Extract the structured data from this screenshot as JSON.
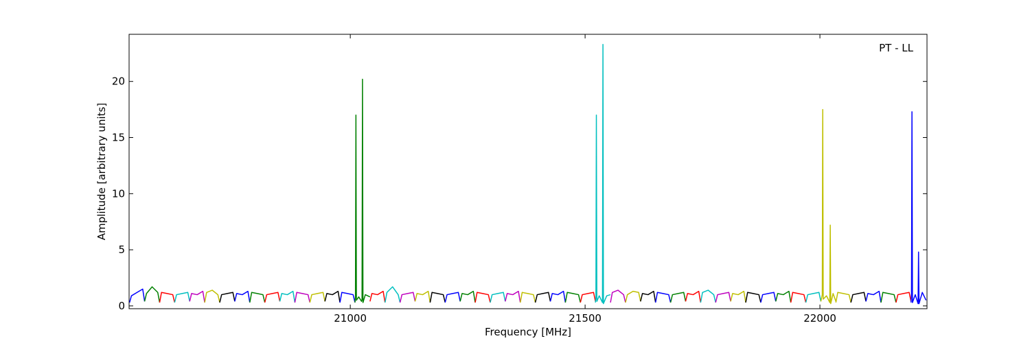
{
  "chart_data": {
    "type": "line",
    "annotation": "PT - LL",
    "xlabel": "Frequency [MHz]",
    "ylabel": "Amplitude [arbitrary units]",
    "xlim": [
      20529,
      22228
    ],
    "ylim": [
      -0.25,
      24.2
    ],
    "xticks": [
      21000,
      21500,
      22000
    ],
    "yticks": [
      0,
      5,
      10,
      15,
      20
    ],
    "series": [
      {
        "color": "#0000ff",
        "x": [
          20530,
          20534,
          20546,
          20558,
          20562
        ],
        "values": [
          0.3,
          0.9,
          1.2,
          1.5,
          0.4
        ]
      },
      {
        "color": "#008000",
        "x": [
          20562,
          20566,
          20578,
          20590,
          20594
        ],
        "values": [
          0.4,
          1.1,
          1.7,
          1.2,
          0.3
        ]
      },
      {
        "color": "#ff0000",
        "x": [
          20594,
          20598,
          20610,
          20622,
          20626
        ],
        "values": [
          0.3,
          1.2,
          1.1,
          1.0,
          0.3
        ]
      },
      {
        "color": "#00bfbf",
        "x": [
          20626,
          20630,
          20642,
          20654,
          20658
        ],
        "values": [
          0.3,
          1.0,
          1.1,
          1.2,
          0.4
        ]
      },
      {
        "color": "#bf00bf",
        "x": [
          20658,
          20662,
          20674,
          20686,
          20690
        ],
        "values": [
          0.4,
          1.1,
          1.0,
          1.3,
          0.3
        ]
      },
      {
        "color": "#bfbf00",
        "x": [
          20690,
          20694,
          20706,
          20718,
          20722
        ],
        "values": [
          0.3,
          1.2,
          1.4,
          1.0,
          0.3
        ]
      },
      {
        "color": "#000000",
        "x": [
          20722,
          20726,
          20738,
          20750,
          20754
        ],
        "values": [
          0.3,
          1.0,
          1.1,
          1.2,
          0.4
        ]
      },
      {
        "color": "#0000ff",
        "x": [
          20754,
          20758,
          20770,
          20782,
          20786
        ],
        "values": [
          0.4,
          1.1,
          1.0,
          1.3,
          0.3
        ]
      },
      {
        "color": "#008000",
        "x": [
          20786,
          20790,
          20802,
          20814,
          20818
        ],
        "values": [
          0.3,
          1.2,
          1.1,
          1.0,
          0.3
        ]
      },
      {
        "color": "#ff0000",
        "x": [
          20818,
          20822,
          20834,
          20846,
          20850
        ],
        "values": [
          0.3,
          1.0,
          1.1,
          1.2,
          0.4
        ]
      },
      {
        "color": "#00bfbf",
        "x": [
          20850,
          20854,
          20866,
          20878,
          20882
        ],
        "values": [
          0.4,
          1.1,
          1.0,
          1.3,
          0.3
        ]
      },
      {
        "color": "#bf00bf",
        "x": [
          20882,
          20886,
          20898,
          20910,
          20914
        ],
        "values": [
          0.3,
          1.2,
          1.1,
          1.0,
          0.3
        ]
      },
      {
        "color": "#bfbf00",
        "x": [
          20914,
          20918,
          20930,
          20942,
          20946
        ],
        "values": [
          0.3,
          1.0,
          1.1,
          1.2,
          0.4
        ]
      },
      {
        "color": "#000000",
        "x": [
          20946,
          20950,
          20962,
          20974,
          20978
        ],
        "values": [
          0.4,
          1.1,
          1.0,
          1.3,
          0.3
        ]
      },
      {
        "color": "#0000ff",
        "x": [
          20978,
          20982,
          20994,
          21006,
          21010
        ],
        "values": [
          0.3,
          1.2,
          1.1,
          1.0,
          0.3
        ]
      },
      {
        "color": "#008000",
        "x": [
          21010,
          21011,
          21012,
          21013,
          21018,
          21024,
          21025,
          21026,
          21027,
          21032,
          21042
        ],
        "values": [
          0.3,
          0.9,
          17,
          0.5,
          0.8,
          0.4,
          0.6,
          20.2,
          0.3,
          1.0,
          0.8
        ]
      },
      {
        "color": "#ff0000",
        "x": [
          21042,
          21046,
          21058,
          21070,
          21074
        ],
        "values": [
          0.4,
          1.1,
          1.0,
          1.3,
          0.3
        ]
      },
      {
        "color": "#00bfbf",
        "x": [
          21074,
          21078,
          21090,
          21102,
          21106
        ],
        "values": [
          0.3,
          1.2,
          1.7,
          1.0,
          0.3
        ]
      },
      {
        "color": "#bf00bf",
        "x": [
          21106,
          21110,
          21122,
          21134,
          21138
        ],
        "values": [
          0.3,
          1.0,
          1.1,
          1.2,
          0.4
        ]
      },
      {
        "color": "#bfbf00",
        "x": [
          21138,
          21142,
          21154,
          21166,
          21170
        ],
        "values": [
          0.4,
          1.1,
          1.0,
          1.3,
          0.3
        ]
      },
      {
        "color": "#000000",
        "x": [
          21170,
          21174,
          21186,
          21198,
          21202
        ],
        "values": [
          0.3,
          1.2,
          1.1,
          1.0,
          0.3
        ]
      },
      {
        "color": "#0000ff",
        "x": [
          21202,
          21206,
          21218,
          21230,
          21234
        ],
        "values": [
          0.3,
          1.0,
          1.1,
          1.2,
          0.4
        ]
      },
      {
        "color": "#008000",
        "x": [
          21234,
          21238,
          21250,
          21262,
          21266
        ],
        "values": [
          0.4,
          1.1,
          1.0,
          1.3,
          0.3
        ]
      },
      {
        "color": "#ff0000",
        "x": [
          21266,
          21270,
          21282,
          21294,
          21298
        ],
        "values": [
          0.3,
          1.2,
          1.1,
          1.0,
          0.3
        ]
      },
      {
        "color": "#00bfbf",
        "x": [
          21298,
          21302,
          21314,
          21326,
          21330
        ],
        "values": [
          0.3,
          1.0,
          1.1,
          1.2,
          0.4
        ]
      },
      {
        "color": "#bf00bf",
        "x": [
          21330,
          21334,
          21346,
          21358,
          21362
        ],
        "values": [
          0.4,
          1.1,
          1.0,
          1.3,
          0.3
        ]
      },
      {
        "color": "#bfbf00",
        "x": [
          21362,
          21366,
          21378,
          21390,
          21394
        ],
        "values": [
          0.3,
          1.2,
          1.1,
          1.0,
          0.3
        ]
      },
      {
        "color": "#000000",
        "x": [
          21394,
          21398,
          21410,
          21422,
          21426
        ],
        "values": [
          0.3,
          1.0,
          1.1,
          1.2,
          0.4
        ]
      },
      {
        "color": "#0000ff",
        "x": [
          21426,
          21430,
          21442,
          21454,
          21458
        ],
        "values": [
          0.4,
          1.1,
          1.0,
          1.3,
          0.3
        ]
      },
      {
        "color": "#008000",
        "x": [
          21458,
          21462,
          21474,
          21486,
          21490
        ],
        "values": [
          0.3,
          1.2,
          1.1,
          1.0,
          0.3
        ]
      },
      {
        "color": "#ff0000",
        "x": [
          21490,
          21494,
          21506,
          21518,
          21522
        ],
        "values": [
          0.3,
          1.0,
          1.1,
          1.2,
          0.4
        ]
      },
      {
        "color": "#00bfbf",
        "x": [
          21522,
          21523,
          21524,
          21525,
          21530,
          21537,
          21538,
          21539,
          21546,
          21554
        ],
        "values": [
          0.3,
          0.8,
          17,
          0.4,
          0.9,
          0.3,
          23.3,
          0.2,
          0.9,
          1.0
        ]
      },
      {
        "color": "#bf00bf",
        "x": [
          21554,
          21558,
          21570,
          21582,
          21586
        ],
        "values": [
          0.3,
          1.2,
          1.4,
          1.0,
          0.3
        ]
      },
      {
        "color": "#bfbf00",
        "x": [
          21586,
          21590,
          21602,
          21614,
          21618
        ],
        "values": [
          0.3,
          1.0,
          1.3,
          1.2,
          0.4
        ]
      },
      {
        "color": "#000000",
        "x": [
          21618,
          21622,
          21634,
          21646,
          21650
        ],
        "values": [
          0.4,
          1.1,
          1.0,
          1.3,
          0.3
        ]
      },
      {
        "color": "#0000ff",
        "x": [
          21650,
          21654,
          21666,
          21678,
          21682
        ],
        "values": [
          0.3,
          1.2,
          1.1,
          1.0,
          0.3
        ]
      },
      {
        "color": "#008000",
        "x": [
          21682,
          21686,
          21698,
          21710,
          21714
        ],
        "values": [
          0.3,
          1.0,
          1.1,
          1.2,
          0.4
        ]
      },
      {
        "color": "#ff0000",
        "x": [
          21714,
          21718,
          21730,
          21742,
          21746
        ],
        "values": [
          0.4,
          1.1,
          1.0,
          1.3,
          0.3
        ]
      },
      {
        "color": "#00bfbf",
        "x": [
          21746,
          21750,
          21762,
          21774,
          21778
        ],
        "values": [
          0.3,
          1.2,
          1.4,
          1.0,
          0.3
        ]
      },
      {
        "color": "#bf00bf",
        "x": [
          21778,
          21782,
          21794,
          21806,
          21810
        ],
        "values": [
          0.3,
          1.0,
          1.1,
          1.2,
          0.4
        ]
      },
      {
        "color": "#bfbf00",
        "x": [
          21810,
          21814,
          21826,
          21838,
          21842
        ],
        "values": [
          0.4,
          1.1,
          1.0,
          1.3,
          0.3
        ]
      },
      {
        "color": "#000000",
        "x": [
          21842,
          21846,
          21858,
          21870,
          21874
        ],
        "values": [
          0.3,
          1.2,
          1.1,
          1.0,
          0.3
        ]
      },
      {
        "color": "#0000ff",
        "x": [
          21874,
          21878,
          21890,
          21902,
          21906
        ],
        "values": [
          0.3,
          1.0,
          1.1,
          1.2,
          0.4
        ]
      },
      {
        "color": "#008000",
        "x": [
          21906,
          21910,
          21922,
          21934,
          21938
        ],
        "values": [
          0.4,
          1.1,
          1.0,
          1.3,
          0.3
        ]
      },
      {
        "color": "#ff0000",
        "x": [
          21938,
          21942,
          21954,
          21966,
          21970
        ],
        "values": [
          0.3,
          1.2,
          1.1,
          1.0,
          0.3
        ]
      },
      {
        "color": "#00bfbf",
        "x": [
          21970,
          21974,
          21986,
          21998,
          22002
        ],
        "values": [
          0.3,
          1.0,
          1.1,
          1.2,
          0.4
        ]
      },
      {
        "color": "#bfbf00",
        "x": [
          22002,
          22005,
          22006,
          22007,
          22014,
          22021,
          22022,
          22023,
          22028,
          22034
        ],
        "values": [
          0.4,
          1.0,
          17.5,
          0.6,
          0.9,
          0.3,
          7.2,
          0.2,
          1.1,
          0.4
        ]
      },
      {
        "color": "#bfbf00",
        "x": [
          22034,
          22038,
          22050,
          22062,
          22066
        ],
        "values": [
          0.3,
          1.2,
          1.1,
          1.0,
          0.3
        ]
      },
      {
        "color": "#000000",
        "x": [
          22066,
          22070,
          22082,
          22094,
          22098
        ],
        "values": [
          0.3,
          1.0,
          1.1,
          1.2,
          0.4
        ]
      },
      {
        "color": "#0000ff",
        "x": [
          22098,
          22102,
          22114,
          22126,
          22130
        ],
        "values": [
          0.4,
          1.1,
          1.0,
          1.3,
          0.3
        ]
      },
      {
        "color": "#008000",
        "x": [
          22130,
          22134,
          22146,
          22158,
          22162
        ],
        "values": [
          0.3,
          1.2,
          1.1,
          1.0,
          0.3
        ]
      },
      {
        "color": "#ff0000",
        "x": [
          22162,
          22166,
          22178,
          22190,
          22194
        ],
        "values": [
          0.3,
          1.0,
          1.1,
          1.2,
          0.4
        ]
      },
      {
        "color": "#0000ff",
        "x": [
          22194,
          22195,
          22196,
          22197,
          22203,
          22209,
          22210,
          22211,
          22218,
          22226
        ],
        "values": [
          0.3,
          1.1,
          17.3,
          0.3,
          1.0,
          0.2,
          4.8,
          0.2,
          1.2,
          0.5
        ]
      }
    ]
  }
}
